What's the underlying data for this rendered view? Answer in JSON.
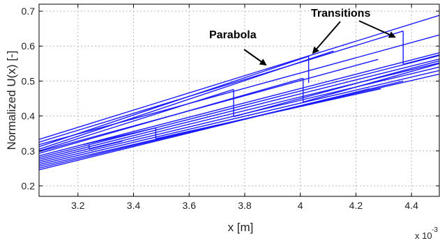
{
  "chart_data": {
    "type": "line",
    "xlabel": "x [m]",
    "ylabel": "Normalized U(x) [-]",
    "x_exponent_label": "x 10",
    "x_exponent_power": "-3",
    "xlim": [
      3.06,
      4.5
    ],
    "ylim": [
      0.17,
      0.72
    ],
    "xticks": [
      "3.2",
      "3.4",
      "3.6",
      "3.8",
      "4",
      "4.2",
      "4.4"
    ],
    "xtick_values": [
      3.2,
      3.4,
      3.6,
      3.8,
      4.0,
      4.2,
      4.4
    ],
    "yticks": [
      "0.2",
      "0.3",
      "0.4",
      "0.5",
      "0.6",
      "0.7"
    ],
    "ytick_values": [
      0.2,
      0.3,
      0.4,
      0.5,
      0.6,
      0.7
    ],
    "grid": true,
    "line_color": "#1a1aff",
    "series": [
      {
        "x": [
          3.06,
          4.5
        ],
        "y": [
          0.333,
          0.688
        ]
      },
      {
        "x": [
          3.06,
          4.5
        ],
        "y": [
          0.318,
          0.632
        ]
      },
      {
        "x": [
          3.06,
          4.37
        ],
        "y": [
          0.325,
          0.643
        ]
      },
      {
        "x": [
          3.06,
          4.03
        ],
        "y": [
          0.312,
          0.571
        ]
      },
      {
        "x": [
          3.06,
          4.12
        ],
        "y": [
          0.305,
          0.586
        ]
      },
      {
        "x": [
          3.06,
          3.76
        ],
        "y": [
          0.3,
          0.476
        ]
      },
      {
        "x": [
          3.06,
          4.28
        ],
        "y": [
          0.298,
          0.562
        ]
      },
      {
        "x": [
          3.06,
          4.01
        ],
        "y": [
          0.293,
          0.508
        ]
      },
      {
        "x": [
          3.06,
          4.5
        ],
        "y": [
          0.286,
          0.581
        ]
      },
      {
        "x": [
          3.06,
          4.5
        ],
        "y": [
          0.281,
          0.573
        ]
      },
      {
        "x": [
          3.06,
          4.5
        ],
        "y": [
          0.276,
          0.563
        ]
      },
      {
        "x": [
          3.06,
          4.5
        ],
        "y": [
          0.271,
          0.552
        ]
      },
      {
        "x": [
          3.06,
          4.5
        ],
        "y": [
          0.266,
          0.54
        ]
      },
      {
        "x": [
          3.06,
          4.5
        ],
        "y": [
          0.261,
          0.53
        ]
      },
      {
        "x": [
          3.06,
          4.5
        ],
        "y": [
          0.256,
          0.52
        ]
      },
      {
        "x": [
          3.06,
          4.37
        ],
        "y": [
          0.251,
          0.5
        ]
      },
      {
        "x": [
          3.06,
          4.25
        ],
        "y": [
          0.246,
          0.478
        ]
      },
      {
        "x": [
          3.76,
          4.5
        ],
        "y": [
          0.398,
          0.558
        ]
      },
      {
        "x": [
          4.01,
          4.5
        ],
        "y": [
          0.44,
          0.55
        ]
      },
      {
        "x": [
          4.37,
          4.5
        ],
        "y": [
          0.548,
          0.575
        ]
      },
      {
        "x": [
          3.48,
          4.29
        ],
        "y": [
          0.335,
          0.478
        ]
      },
      {
        "x": [
          3.22,
          3.48
        ],
        "y": [
          0.318,
          0.366
        ]
      },
      {
        "x": [
          3.24,
          3.36
        ],
        "y": [
          0.305,
          0.328
        ]
      }
    ],
    "transitions": [
      {
        "x": 3.76,
        "y": [
          0.398,
          0.476
        ]
      },
      {
        "x": 4.01,
        "y": [
          0.44,
          0.508
        ]
      },
      {
        "x": 4.03,
        "y": [
          0.495,
          0.571
        ]
      },
      {
        "x": 4.37,
        "y": [
          0.548,
          0.643
        ]
      },
      {
        "x": 3.48,
        "y": [
          0.335,
          0.366
        ]
      },
      {
        "x": 3.24,
        "y": [
          0.305,
          0.318
        ]
      }
    ],
    "annotations": [
      {
        "text": "Transitions",
        "arrow_to": [
          4.03,
          0.585
        ]
      },
      {
        "text": "Parabola",
        "arrow_to": [
          3.88,
          0.535
        ]
      }
    ]
  }
}
